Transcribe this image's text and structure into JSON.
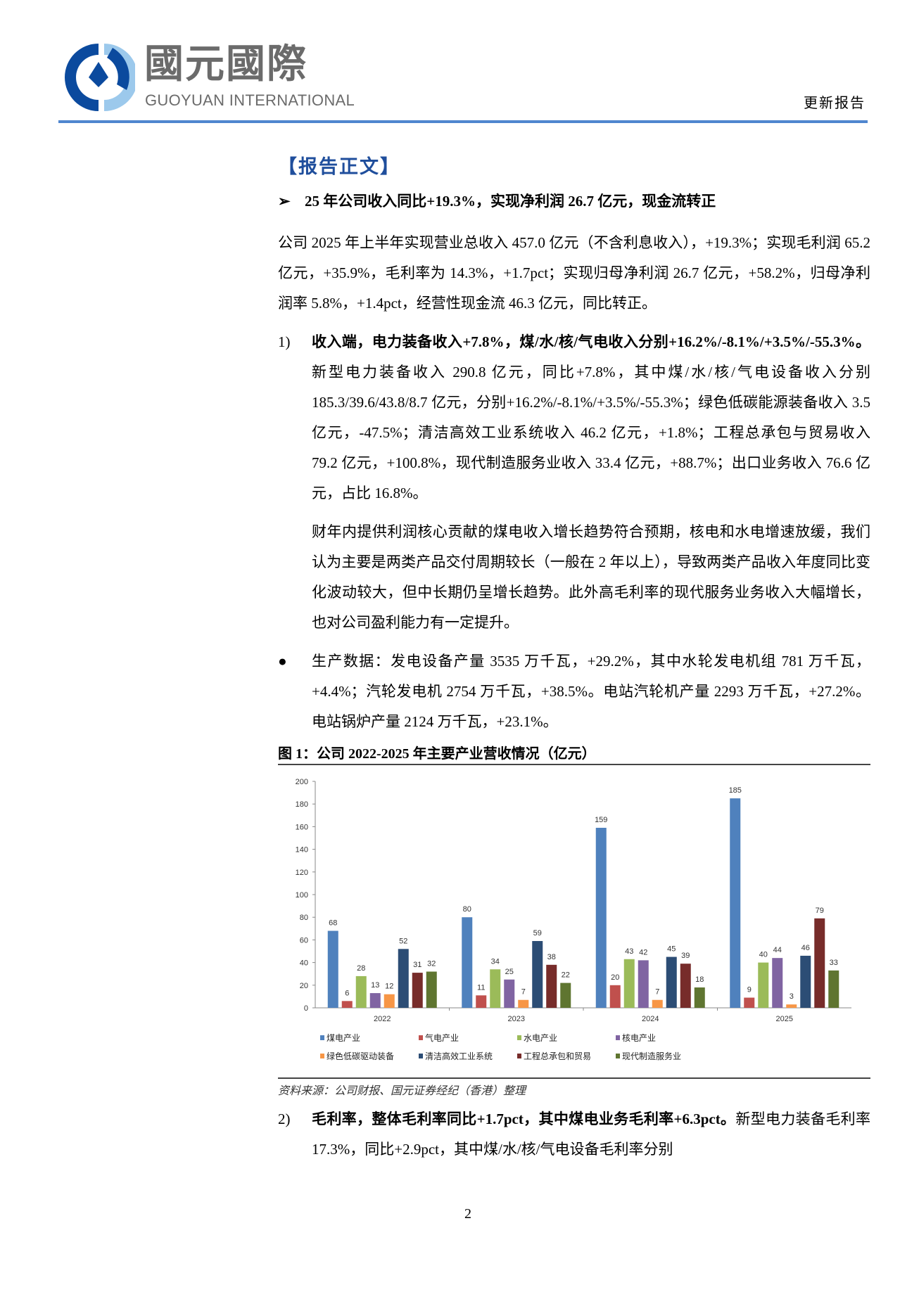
{
  "header": {
    "logo_cn": "國元國際",
    "logo_en": "GUOYUAN INTERNATIONAL",
    "doc_type": "更新报告",
    "brand_color": "#4f86cf"
  },
  "section_title": "【报告正文】",
  "bullet_heading": "25 年公司收入同比+19.3%，实现净利润 26.7 亿元，现金流转正",
  "summary": "公司 2025 年上半年实现营业总收入 457.0 亿元（不含利息收入），+19.3%；实现毛利润 65.2 亿元，+35.9%，毛利率为 14.3%，+1.7pct；实现归母净利润 26.7 亿元，+58.2%，归母净利润率 5.8%，+1.4pct，经营性现金流 46.3 亿元，同比转正。",
  "item1": {
    "num": "1)",
    "bold": "收入端，电力装备收入+7.8%，煤/水/核/气电收入分别+16.2%/-8.1%/+3.5%/-55.3%。",
    "text": "新型电力装备收入 290.8 亿元，同比+7.8%，其中煤/水/核/气电设备收入分别 185.3/39.6/43.8/8.7 亿元，分别+16.2%/-8.1%/+3.5%/-55.3%；绿色低碳能源装备收入 3.5 亿元，-47.5%；清洁高效工业系统收入 46.2 亿元，+1.8%；工程总承包与贸易收入 79.2 亿元，+100.8%，现代制造服务业收入 33.4 亿元，+88.7%；出口业务收入 76.6 亿元，占比 16.8%。"
  },
  "item1_para2": "财年内提供利润核心贡献的煤电收入增长趋势符合预期，核电和水电增速放缓，我们认为主要是两类产品交付周期较长（一般在 2 年以上），导致两类产品收入年度同比变化波动较大，但中长期仍呈增长趋势。此外高毛利率的现代服务业务收入大幅增长，也对公司盈利能力有一定提升。",
  "production": {
    "bold": "生产数据：",
    "text": "发电设备产量 3535 万千瓦，+29.2%，其中水轮发电机组 781 万千瓦，+4.4%；汽轮发电机 2754 万千瓦，+38.5%。电站汽轮机产量 2293 万千瓦，+27.2%。电站锅炉产量 2124 万千瓦，+23.1%。"
  },
  "figure_caption": "图 1：公司 2022-2025 年主要产业营收情况（亿元）",
  "source": "资料来源：公司财报、国元证券经纪（香港）整理",
  "item2": {
    "num": "2)",
    "bold": "毛利率，整体毛利率同比+1.7pct，其中煤电业务毛利率+6.3pct。",
    "text": "新型电力装备毛利率 17.3%，同比+2.9pct，其中煤/水/核/气电设备毛利率分别"
  },
  "page_number": "2",
  "chart_data": {
    "type": "bar",
    "categories": [
      "2022",
      "2023",
      "2024",
      "2025"
    ],
    "ylim": [
      0,
      200
    ],
    "yticks": [
      0,
      20,
      40,
      60,
      80,
      100,
      120,
      140,
      160,
      180,
      200
    ],
    "grid": false,
    "legend_position": "bottom",
    "series": [
      {
        "name": "煤电产业",
        "color": "#4f81bd",
        "values": [
          68,
          80,
          159,
          185
        ]
      },
      {
        "name": "气电产业",
        "color": "#c0504d",
        "values": [
          6,
          11,
          20,
          9
        ]
      },
      {
        "name": "水电产业",
        "color": "#9bbb59",
        "values": [
          28,
          34,
          43,
          40
        ]
      },
      {
        "name": "核电产业",
        "color": "#8064a2",
        "values": [
          13,
          25,
          42,
          44
        ]
      },
      {
        "name": "绿色低碳驱动装备",
        "color": "#f79646",
        "values": [
          12,
          7,
          7,
          3
        ]
      },
      {
        "name": "清洁高效工业系统",
        "color": "#2c4d75",
        "values": [
          52,
          59,
          45,
          46
        ]
      },
      {
        "name": "工程总承包和贸易",
        "color": "#772c2a",
        "values": [
          31,
          38,
          39,
          79
        ]
      },
      {
        "name": "现代制造服务业",
        "color": "#5f7530",
        "values": [
          32,
          22,
          18,
          33
        ]
      }
    ]
  }
}
